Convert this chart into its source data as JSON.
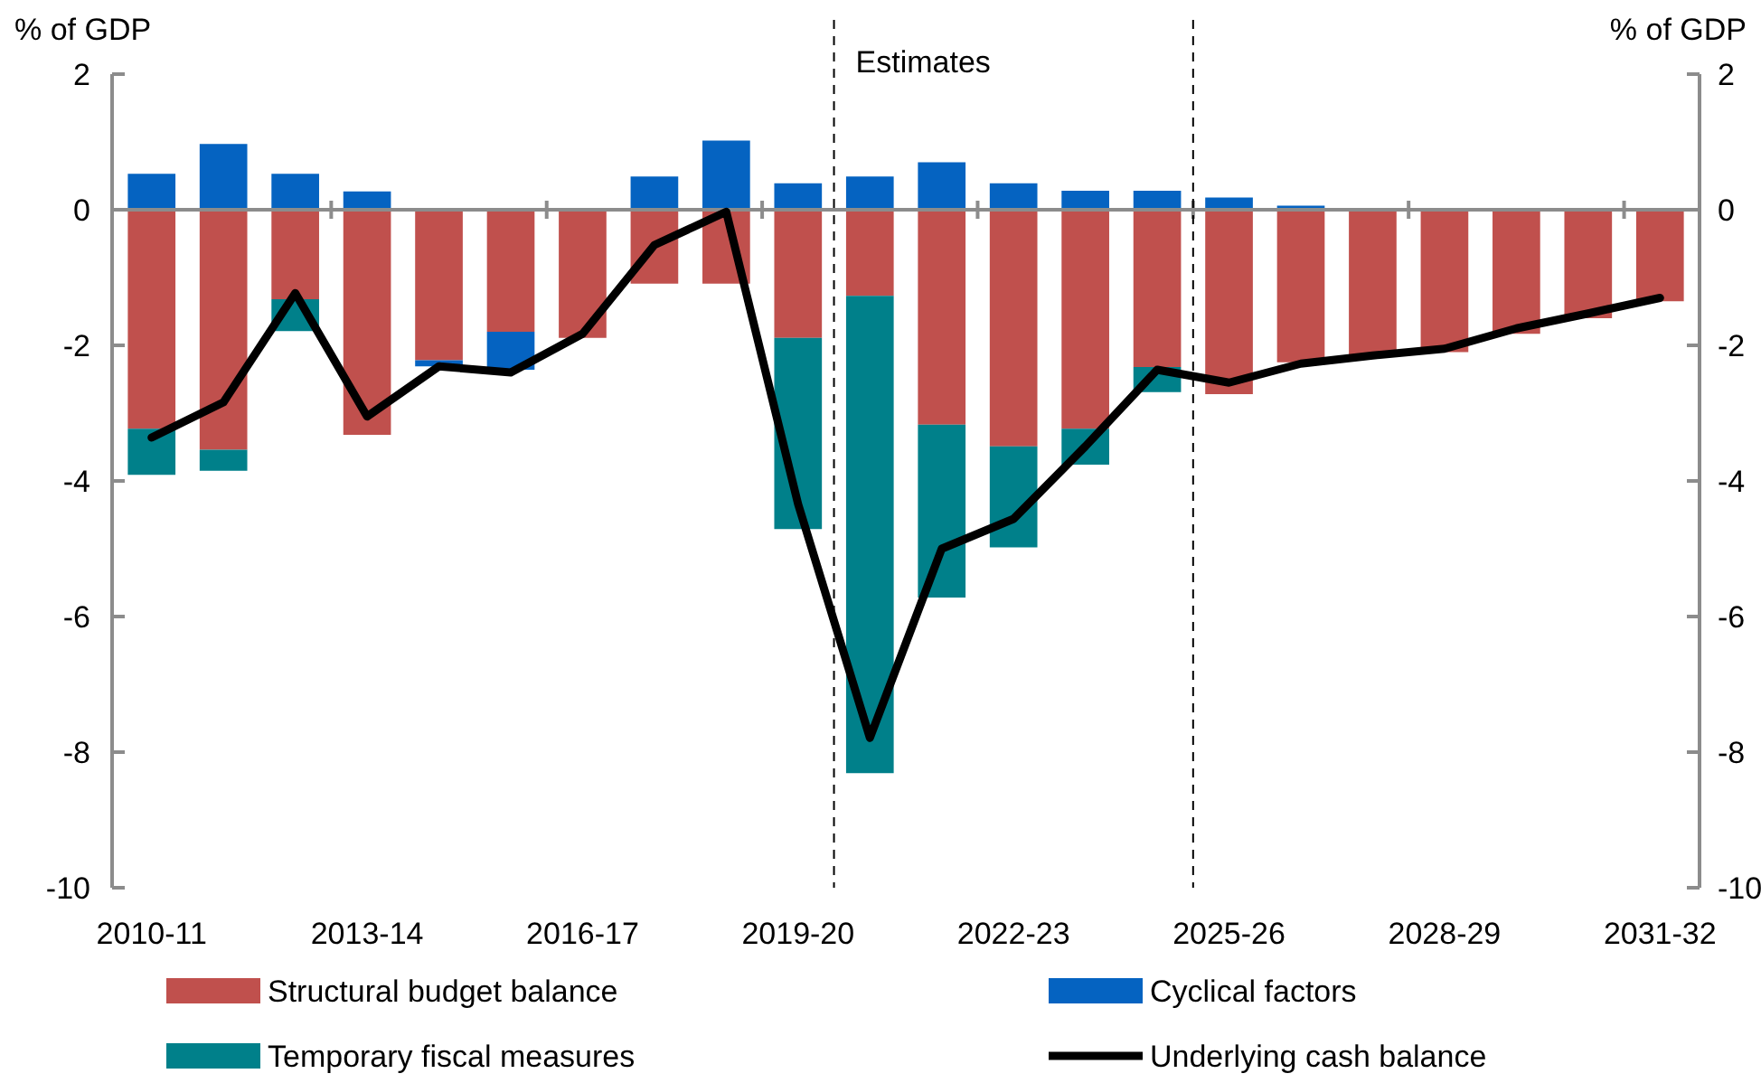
{
  "chart_data": {
    "type": "bar",
    "stacked": true,
    "ylabel": "% of GDP",
    "y2label": "% of GDP",
    "categories": [
      "2010-11",
      null,
      null,
      "2013-14",
      null,
      null,
      "2016-17",
      null,
      null,
      "2019-20",
      null,
      null,
      "2022-23",
      null,
      null,
      "2025-26",
      null,
      null,
      "2028-29",
      null,
      null,
      "2031-32"
    ],
    "ylim": [
      -10,
      2
    ],
    "yticks": [
      -10,
      -8,
      -6,
      -4,
      -2,
      0,
      2
    ],
    "y2lim": [
      -10,
      2
    ],
    "y2ticks": [
      -10,
      -8,
      -6,
      -4,
      -2,
      0,
      2
    ],
    "series": [
      {
        "name": "Structural budget balance",
        "color": "#c0504d",
        "values": [
          -3.23,
          -3.54,
          -1.32,
          -3.32,
          -2.22,
          -1.8,
          -1.89,
          -1.09,
          -1.09,
          -1.89,
          -1.27,
          -3.17,
          -3.49,
          -3.23,
          -2.32,
          -2.72,
          -2.25,
          -2.15,
          -2.1,
          -1.83,
          -1.6,
          -1.35
        ]
      },
      {
        "name": "Cyclical factors",
        "color": "#0563c1",
        "values": [
          0.53,
          0.97,
          0.53,
          0.27,
          -0.09,
          -0.56,
          null,
          0.49,
          1.02,
          0.39,
          0.49,
          0.7,
          0.39,
          0.28,
          0.28,
          0.18,
          0.06,
          null,
          null,
          null,
          null,
          null
        ]
      },
      {
        "name": "Temporary fiscal measures",
        "color": "#00808a",
        "values": [
          -0.68,
          -0.31,
          -0.47,
          null,
          null,
          null,
          null,
          null,
          null,
          -2.82,
          -7.04,
          -2.55,
          -1.49,
          -0.53,
          -0.37,
          null,
          null,
          null,
          null,
          null,
          null,
          null
        ]
      },
      {
        "name": "Underlying cash balance",
        "type": "line",
        "color": "#000000",
        "values": [
          -3.36,
          -2.84,
          -1.23,
          -3.05,
          -2.31,
          -2.4,
          -1.83,
          -0.52,
          -0.03,
          -4.34,
          -7.79,
          -5.0,
          -4.56,
          -3.49,
          -2.36,
          -2.55,
          -2.27,
          -2.15,
          -2.05,
          -1.75,
          -1.53,
          -1.3
        ]
      }
    ],
    "annotations": [
      "Estimates"
    ],
    "legend": "bottom",
    "grid": false,
    "marker": "none"
  }
}
